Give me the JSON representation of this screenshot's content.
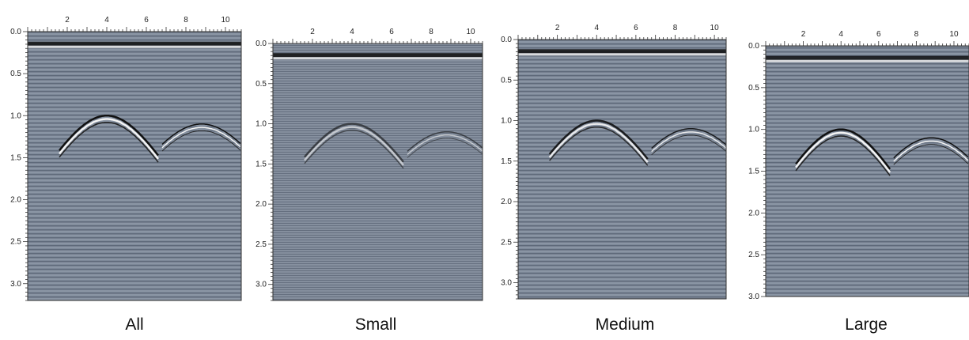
{
  "panels": [
    {
      "caption": "All",
      "xticks": [
        "2",
        "4",
        "6",
        "8",
        "10"
      ],
      "yticks": [
        "0.0",
        "0.5",
        "1.0",
        "1.5",
        "2.0",
        "2.5",
        "3.0"
      ]
    },
    {
      "caption": "Small",
      "xticks": [
        "2",
        "4",
        "6",
        "8",
        "10"
      ],
      "yticks": [
        "0.0",
        "0.5",
        "1.0",
        "1.5",
        "2.0",
        "2.5",
        "3.0"
      ]
    },
    {
      "caption": "Medium",
      "xticks": [
        "2",
        "4",
        "6",
        "8",
        "10"
      ],
      "yticks": [
        "0.0",
        "0.5",
        "1.0",
        "1.5",
        "2.0",
        "2.5",
        "3.0"
      ]
    },
    {
      "caption": "Large",
      "xticks": [
        "2",
        "4",
        "6",
        "8",
        "10"
      ],
      "yticks": [
        "0.0",
        "0.5",
        "1.0",
        "1.5",
        "2.0",
        "2.5",
        "3.0"
      ]
    }
  ]
}
